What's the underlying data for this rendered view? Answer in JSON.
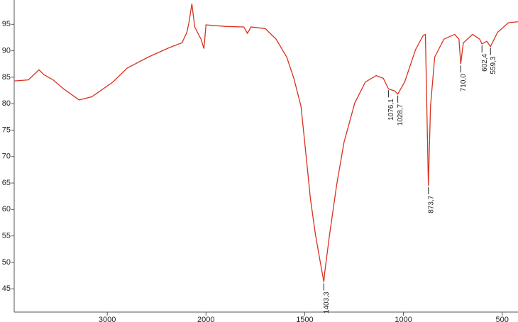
{
  "chart_data": {
    "type": "line",
    "x": [
      3940,
      3799,
      3692,
      3642,
      3549,
      3442,
      3285,
      3157,
      2942,
      2800,
      2585,
      2371,
      2243,
      2193,
      2171,
      2143,
      2114,
      2050,
      2021,
      2000,
      1899,
      1808,
      1790,
      1772,
      1700,
      1645,
      1591,
      1555,
      1519,
      1493,
      1471,
      1446,
      1421,
      1403.3,
      1399,
      1374,
      1338,
      1301,
      1247,
      1193,
      1138,
      1102,
      1076.1,
      1044,
      1028.7,
      994,
      939,
      900,
      889,
      873.7,
      863,
      842,
      795,
      741,
      719,
      710,
      697,
      650,
      614,
      602.4,
      578,
      559.3,
      523,
      469,
      420
    ],
    "series": [
      {
        "color": "#d8321f",
        "values": [
          84.3,
          84.5,
          86.4,
          85.5,
          84.5,
          82.8,
          80.7,
          81.3,
          84.1,
          86.7,
          88.8,
          90.6,
          91.5,
          93.5,
          95.5,
          98.9,
          94.5,
          92.2,
          90.4,
          94.9,
          94.6,
          94.5,
          93.3,
          94.5,
          94.2,
          92.2,
          88.8,
          84.8,
          79.5,
          70.1,
          62,
          55.3,
          50,
          46.3,
          48,
          55.3,
          64.7,
          72.7,
          80.1,
          84.1,
          85.3,
          84.8,
          82.8,
          82.4,
          81.8,
          84.1,
          90.2,
          92.9,
          93.1,
          64.5,
          79.5,
          88.8,
          92.2,
          93.1,
          92.2,
          87.5,
          91.5,
          93.1,
          92.2,
          91.3,
          91.8,
          90.8,
          93.5,
          95.3,
          95.5
        ]
      }
    ],
    "xlim": [
      4000,
      420
    ],
    "xticks": [
      3000,
      2000,
      1500,
      1000,
      500
    ],
    "ylim": [
      40.6,
      99.6
    ],
    "yticks": [
      45,
      50,
      55,
      60,
      65,
      70,
      75,
      80,
      85,
      90,
      95
    ],
    "annotations": [
      {
        "x": 1403.3,
        "y": 46.3,
        "label": "1403,3"
      },
      {
        "x": 1076.1,
        "y": 82.8,
        "label": "1076,1"
      },
      {
        "x": 1028.7,
        "y": 81.8,
        "label": "1028,7"
      },
      {
        "x": 873.7,
        "y": 64.5,
        "label": "873,7"
      },
      {
        "x": 710.0,
        "y": 87.5,
        "label": "710,0"
      },
      {
        "x": 602.4,
        "y": 91.3,
        "label": "602,4"
      },
      {
        "x": 559.3,
        "y": 90.8,
        "label": "559,3"
      }
    ]
  }
}
